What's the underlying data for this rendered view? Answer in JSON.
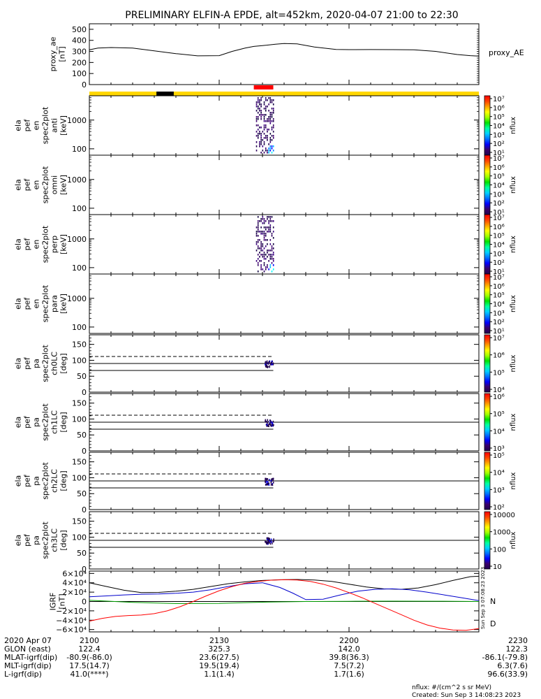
{
  "title": "PRELIMINARY ELFIN-A EPDE, alt=452km, 2020-04-07 21:00 to 22:30",
  "footer": {
    "units": "nflux: #/(cm^2 s sr MeV)",
    "created": "Created: Sun Sep  3 14:08:23 2023",
    "side_stamp": "Sun Sep  3 07:08:23 2023"
  },
  "colors": {
    "yellow": "#ffd700",
    "red": "#ff0000",
    "black": "#000000",
    "blue": "#0000cc",
    "green": "#00a000"
  },
  "chart_data": [
    {
      "id": "proxy_ae",
      "type": "line",
      "ylabel_lines": [
        "proxy_ae",
        "[nT]"
      ],
      "yticks": [
        "500",
        "400",
        "300",
        "200",
        "100",
        "0"
      ],
      "ylim": [
        0,
        550
      ],
      "series": [
        {
          "name": "proxy_AE",
          "x": [
            0,
            2,
            5,
            10,
            15,
            20,
            25,
            30,
            33,
            36,
            38,
            40,
            43,
            45,
            48,
            52,
            57,
            60,
            65,
            70,
            75,
            80,
            85,
            88,
            90
          ],
          "y": [
            315,
            330,
            335,
            330,
            305,
            280,
            260,
            262,
            300,
            330,
            345,
            352,
            365,
            372,
            368,
            340,
            318,
            316,
            317,
            316,
            315,
            300,
            272,
            262,
            258
          ]
        }
      ]
    },
    {
      "id": "status_bar",
      "type": "bar",
      "segments": [
        {
          "start": 0,
          "end": 90,
          "color": "#ffd700",
          "row": "main"
        },
        {
          "start": 15.5,
          "end": 19.5,
          "color": "#000000",
          "row": "main"
        },
        {
          "start": 38,
          "end": 42.5,
          "color": "#ff0000",
          "row": "top"
        }
      ]
    },
    {
      "id": "spec_anti",
      "type": "heatmap",
      "ylabel_lines": [
        "ela",
        "pef",
        "en",
        "spec2plot",
        "anti",
        "[keV]"
      ],
      "yticks": [
        "1000",
        "100"
      ],
      "yscale": "log",
      "ylim": [
        60,
        7000
      ],
      "xrange": [
        38.5,
        42.5
      ],
      "colorbar": {
        "label": "nflux",
        "ticks": [
          "10⁷",
          "10⁶",
          "10⁵",
          "10⁴",
          "10³",
          "10²",
          "10¹"
        ]
      }
    },
    {
      "id": "spec_omni",
      "type": "heatmap",
      "ylabel_lines": [
        "ela",
        "pef",
        "en",
        "spec2plot",
        "omni",
        "[keV]"
      ],
      "yticks": [
        "1000",
        "100"
      ],
      "yscale": "log",
      "ylim": [
        60,
        7000
      ],
      "colorbar": {
        "label": "nflux",
        "ticks": [
          "10⁷",
          "10⁶",
          "10⁵",
          "10⁴",
          "10³",
          "10²",
          "10¹"
        ]
      }
    },
    {
      "id": "spec_perp",
      "type": "heatmap",
      "ylabel_lines": [
        "ela",
        "pef",
        "en",
        "spec2plot",
        "perp",
        "[keV]"
      ],
      "yticks": [
        "1000",
        "100"
      ],
      "yscale": "log",
      "ylim": [
        60,
        7000
      ],
      "xrange": [
        38.5,
        42.5
      ],
      "colorbar": {
        "label": "nflux",
        "ticks": [
          "10⁷",
          "10⁶",
          "10⁵",
          "10⁴",
          "10³",
          "10²",
          "10¹"
        ]
      }
    },
    {
      "id": "spec_para",
      "type": "heatmap",
      "ylabel_lines": [
        "ela",
        "pef",
        "en",
        "spec2plot",
        "para",
        "[keV]"
      ],
      "yticks": [
        "1000",
        "100"
      ],
      "yscale": "log",
      "ylim": [
        60,
        7000
      ],
      "colorbar": {
        "label": "nflux",
        "ticks": [
          "10⁷",
          "10⁶",
          "10⁵",
          "10⁴",
          "10³",
          "10²",
          "10¹"
        ]
      }
    },
    {
      "id": "pa_ch0",
      "type": "heatmap",
      "ylabel_lines": [
        "ela",
        "pef",
        "pa",
        "spec2plot",
        "ch0LC",
        "[deg]"
      ],
      "yticks": [
        "150",
        "100",
        "50",
        "0"
      ],
      "ylim": [
        0,
        180
      ],
      "colorbar": {
        "label": "nflux",
        "ticks": [
          "10⁷",
          "10⁶",
          "10⁵",
          "10⁴"
        ]
      }
    },
    {
      "id": "pa_ch1",
      "type": "heatmap",
      "ylabel_lines": [
        "ela",
        "pef",
        "pa",
        "spec2plot",
        "ch1LC",
        "[deg]"
      ],
      "yticks": [
        "150",
        "100",
        "50",
        "0"
      ],
      "ylim": [
        0,
        180
      ],
      "colorbar": {
        "label": "nflux",
        "ticks": [
          "10⁶",
          "10⁵",
          "10⁴",
          "10³"
        ]
      }
    },
    {
      "id": "pa_ch2",
      "type": "heatmap",
      "ylabel_lines": [
        "ela",
        "pef",
        "pa",
        "spec2plot",
        "ch2LC",
        "[deg]"
      ],
      "yticks": [
        "150",
        "100",
        "50",
        "0"
      ],
      "ylim": [
        0,
        180
      ],
      "colorbar": {
        "label": "nflux",
        "ticks": [
          "10⁵",
          "10⁴",
          "10³",
          "10²"
        ]
      }
    },
    {
      "id": "pa_ch3",
      "type": "heatmap",
      "ylabel_lines": [
        "ela",
        "pef",
        "pa",
        "spec2plot",
        "ch3LC",
        "[deg]"
      ],
      "yticks": [
        "150",
        "100",
        "50",
        "0"
      ],
      "ylim": [
        0,
        180
      ],
      "colorbar": {
        "label": "nflux",
        "ticks": [
          "10000",
          "1000",
          "100",
          "10"
        ]
      }
    },
    {
      "id": "igrf",
      "type": "line",
      "ylabel_lines": [
        "IGRF",
        "[nT]"
      ],
      "yticks": [
        "6×10⁴",
        "4×10⁴",
        "2×10⁴",
        "0",
        "−2×10⁴",
        "−4×10⁴",
        "−6×10⁴"
      ],
      "ylim": [
        -65000,
        65000
      ],
      "series": [
        {
          "name": "",
          "color": "#000000",
          "x": [
            0,
            4,
            8,
            12,
            16,
            20,
            24,
            28,
            32,
            36,
            40,
            44,
            48,
            52,
            56,
            60,
            64,
            68,
            72,
            76,
            80,
            84,
            88,
            90
          ],
          "y": [
            40000,
            32000,
            24000,
            19000,
            19500,
            22000,
            26000,
            32000,
            38000,
            42000,
            45000,
            46500,
            47000,
            46000,
            43000,
            37000,
            31000,
            27000,
            26000,
            29000,
            36000,
            45000,
            53000,
            54000
          ]
        },
        {
          "name": "N",
          "color": "#0000cc",
          "x": [
            0,
            4,
            8,
            12,
            16,
            20,
            24,
            28,
            32,
            36,
            40,
            44,
            47,
            50,
            54,
            58,
            62,
            66,
            70,
            74,
            78,
            82,
            86,
            90
          ],
          "y": [
            10000,
            12000,
            14000,
            15500,
            16000,
            17500,
            20000,
            25000,
            32000,
            38000,
            40000,
            30000,
            18000,
            4000,
            5000,
            14000,
            22000,
            26000,
            27000,
            25000,
            20000,
            14000,
            8000,
            2000
          ]
        },
        {
          "name": "",
          "color": "#00a000",
          "x": [
            0,
            10,
            20,
            30,
            40,
            50,
            60,
            70,
            80,
            90
          ],
          "y": [
            2500,
            -2000,
            -4500,
            -4000,
            -1500,
            0,
            500,
            800,
            600,
            0
          ]
        },
        {
          "name": "D",
          "color": "#ff0000",
          "x": [
            0,
            3,
            6,
            9,
            12,
            15,
            18,
            21,
            24,
            27,
            30,
            33,
            36,
            39,
            42,
            45,
            48,
            51,
            54,
            57,
            60,
            63,
            66,
            69,
            72,
            75,
            78,
            81,
            84,
            87,
            90
          ],
          "y": [
            -42000,
            -36000,
            -32000,
            -30000,
            -29000,
            -26000,
            -20000,
            -11000,
            0,
            12000,
            23000,
            32000,
            39000,
            43000,
            45500,
            46500,
            46000,
            43000,
            37000,
            29000,
            19000,
            8000,
            -4000,
            -16000,
            -28000,
            -40000,
            -50000,
            -57000,
            -61000,
            -61500,
            -58000
          ]
        }
      ]
    }
  ],
  "axis_x": {
    "ticks": [
      "2100",
      "2130",
      "2200",
      "2230"
    ],
    "tick_pos": [
      0,
      30,
      60,
      90
    ],
    "range": [
      0,
      90
    ]
  },
  "orbit_table": [
    {
      "label": "2020 Apr 07",
      "values": [
        "2100",
        "2130",
        "2200",
        "2230"
      ]
    },
    {
      "label": "GLON (east)",
      "values": [
        "122.4",
        "325.3",
        "142.0",
        "122.3"
      ]
    },
    {
      "label": "MLAT-igrf(dip)",
      "values": [
        "-80.9(-86.0)",
        "23.6(27.5)",
        "39.8(36.3)",
        "-86.1(-79.8)"
      ]
    },
    {
      "label": "MLT-igrf(dip)",
      "values": [
        "17.5(14.7)",
        "19.5(19.4)",
        "7.5(7.2)",
        "6.3(7.6)"
      ]
    },
    {
      "label": "L-igrf(dip)",
      "values": [
        "41.0(****)",
        "1.1(1.4)",
        "1.7(1.6)",
        "96.6(33.9)"
      ]
    }
  ]
}
